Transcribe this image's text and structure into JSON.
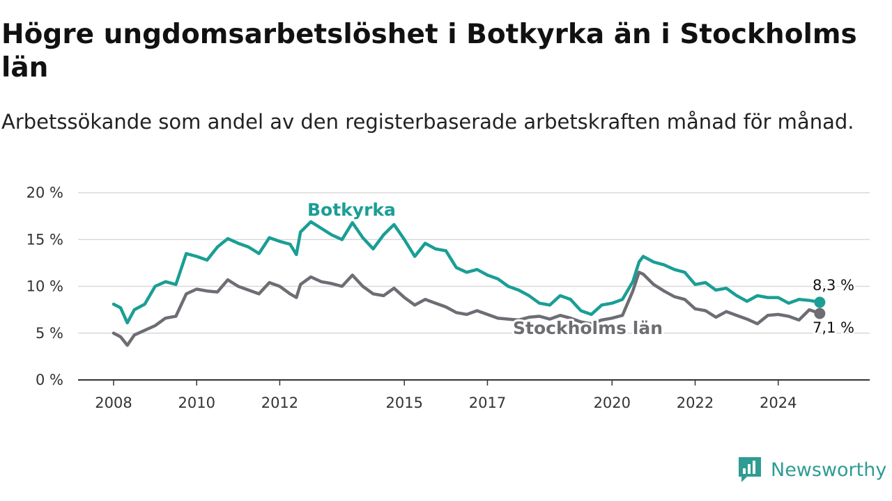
{
  "title": "Högre ungdomsarbetslöshet i Botkyrka än i Stockholms län",
  "subtitle": "Arbetssökande som andel av den registerbaserade arbetskraften månad för månad.",
  "brand": {
    "name": "Newsworthy",
    "icon": "newsworthy-logo-icon",
    "color": "#2e9c93"
  },
  "chart_data": {
    "type": "line",
    "title": "Högre ungdomsarbetslöshet i Botkyrka än i Stockholms län",
    "xlabel": "",
    "ylabel": "",
    "ylim": [
      0,
      20
    ],
    "xlim": [
      2008.0,
      2025.33
    ],
    "grid": true,
    "y_ticks": [
      0,
      5,
      10,
      15,
      20
    ],
    "y_tick_labels": [
      "0 %",
      "5 %",
      "10 %",
      "15 %",
      "20 %"
    ],
    "x_ticks": [
      2008,
      2010,
      2012,
      2015,
      2017,
      2020,
      2022,
      2024
    ],
    "x_tick_labels": [
      "2008",
      "2010",
      "2012",
      "2015",
      "2017",
      "2020",
      "2022",
      "2024"
    ],
    "series": [
      {
        "name": "Botkyrka",
        "color": "#1a9e95",
        "end_label": "8,3 %",
        "points": [
          [
            2008.0,
            8.1
          ],
          [
            2008.17,
            7.7
          ],
          [
            2008.33,
            6.1
          ],
          [
            2008.5,
            7.5
          ],
          [
            2008.75,
            8.1
          ],
          [
            2009.0,
            10.0
          ],
          [
            2009.25,
            10.5
          ],
          [
            2009.5,
            10.2
          ],
          [
            2009.75,
            13.5
          ],
          [
            2010.0,
            13.2
          ],
          [
            2010.25,
            12.8
          ],
          [
            2010.5,
            14.2
          ],
          [
            2010.75,
            15.1
          ],
          [
            2011.0,
            14.6
          ],
          [
            2011.25,
            14.2
          ],
          [
            2011.5,
            13.5
          ],
          [
            2011.75,
            15.2
          ],
          [
            2012.0,
            14.8
          ],
          [
            2012.25,
            14.5
          ],
          [
            2012.4,
            13.4
          ],
          [
            2012.5,
            15.8
          ],
          [
            2012.75,
            16.9
          ],
          [
            2013.0,
            16.2
          ],
          [
            2013.25,
            15.5
          ],
          [
            2013.5,
            15.0
          ],
          [
            2013.75,
            16.8
          ],
          [
            2014.0,
            15.2
          ],
          [
            2014.25,
            14.0
          ],
          [
            2014.5,
            15.5
          ],
          [
            2014.75,
            16.6
          ],
          [
            2015.0,
            15.0
          ],
          [
            2015.25,
            13.2
          ],
          [
            2015.5,
            14.6
          ],
          [
            2015.75,
            14.0
          ],
          [
            2016.0,
            13.8
          ],
          [
            2016.25,
            12.0
          ],
          [
            2016.5,
            11.5
          ],
          [
            2016.75,
            11.8
          ],
          [
            2017.0,
            11.2
          ],
          [
            2017.25,
            10.8
          ],
          [
            2017.5,
            10.0
          ],
          [
            2017.75,
            9.6
          ],
          [
            2018.0,
            9.0
          ],
          [
            2018.25,
            8.2
          ],
          [
            2018.5,
            8.0
          ],
          [
            2018.75,
            9.0
          ],
          [
            2019.0,
            8.6
          ],
          [
            2019.25,
            7.4
          ],
          [
            2019.5,
            7.0
          ],
          [
            2019.75,
            8.0
          ],
          [
            2020.0,
            8.2
          ],
          [
            2020.25,
            8.6
          ],
          [
            2020.5,
            10.5
          ],
          [
            2020.65,
            12.6
          ],
          [
            2020.75,
            13.2
          ],
          [
            2021.0,
            12.6
          ],
          [
            2021.25,
            12.3
          ],
          [
            2021.5,
            11.8
          ],
          [
            2021.75,
            11.5
          ],
          [
            2022.0,
            10.2
          ],
          [
            2022.25,
            10.4
          ],
          [
            2022.5,
            9.6
          ],
          [
            2022.75,
            9.8
          ],
          [
            2023.0,
            9.0
          ],
          [
            2023.25,
            8.4
          ],
          [
            2023.5,
            9.0
          ],
          [
            2023.75,
            8.8
          ],
          [
            2024.0,
            8.8
          ],
          [
            2024.25,
            8.2
          ],
          [
            2024.5,
            8.6
          ],
          [
            2024.75,
            8.5
          ],
          [
            2025.0,
            8.3
          ]
        ]
      },
      {
        "name": "Stockholms län",
        "color": "#6e6d73",
        "end_label": "7,1 %",
        "points": [
          [
            2008.0,
            5.0
          ],
          [
            2008.17,
            4.6
          ],
          [
            2008.33,
            3.7
          ],
          [
            2008.5,
            4.8
          ],
          [
            2008.75,
            5.3
          ],
          [
            2009.0,
            5.8
          ],
          [
            2009.25,
            6.6
          ],
          [
            2009.5,
            6.8
          ],
          [
            2009.75,
            9.2
          ],
          [
            2010.0,
            9.7
          ],
          [
            2010.25,
            9.5
          ],
          [
            2010.5,
            9.4
          ],
          [
            2010.75,
            10.7
          ],
          [
            2011.0,
            10.0
          ],
          [
            2011.25,
            9.6
          ],
          [
            2011.5,
            9.2
          ],
          [
            2011.75,
            10.4
          ],
          [
            2012.0,
            10.0
          ],
          [
            2012.25,
            9.2
          ],
          [
            2012.4,
            8.8
          ],
          [
            2012.5,
            10.2
          ],
          [
            2012.75,
            11.0
          ],
          [
            2013.0,
            10.5
          ],
          [
            2013.25,
            10.3
          ],
          [
            2013.5,
            10.0
          ],
          [
            2013.75,
            11.2
          ],
          [
            2014.0,
            10.0
          ],
          [
            2014.25,
            9.2
          ],
          [
            2014.5,
            9.0
          ],
          [
            2014.75,
            9.8
          ],
          [
            2015.0,
            8.8
          ],
          [
            2015.25,
            8.0
          ],
          [
            2015.5,
            8.6
          ],
          [
            2015.75,
            8.2
          ],
          [
            2016.0,
            7.8
          ],
          [
            2016.25,
            7.2
          ],
          [
            2016.5,
            7.0
          ],
          [
            2016.75,
            7.4
          ],
          [
            2017.0,
            7.0
          ],
          [
            2017.25,
            6.6
          ],
          [
            2017.5,
            6.5
          ],
          [
            2017.75,
            6.4
          ],
          [
            2018.0,
            6.7
          ],
          [
            2018.25,
            6.8
          ],
          [
            2018.5,
            6.5
          ],
          [
            2018.75,
            6.9
          ],
          [
            2019.0,
            6.6
          ],
          [
            2019.25,
            6.2
          ],
          [
            2019.5,
            6.0
          ],
          [
            2019.75,
            6.4
          ],
          [
            2020.0,
            6.6
          ],
          [
            2020.25,
            6.9
          ],
          [
            2020.5,
            9.5
          ],
          [
            2020.65,
            11.5
          ],
          [
            2020.75,
            11.3
          ],
          [
            2021.0,
            10.2
          ],
          [
            2021.25,
            9.5
          ],
          [
            2021.5,
            8.9
          ],
          [
            2021.75,
            8.6
          ],
          [
            2022.0,
            7.6
          ],
          [
            2022.25,
            7.4
          ],
          [
            2022.5,
            6.7
          ],
          [
            2022.75,
            7.3
          ],
          [
            2023.0,
            6.9
          ],
          [
            2023.25,
            6.5
          ],
          [
            2023.5,
            6.0
          ],
          [
            2023.75,
            6.9
          ],
          [
            2024.0,
            7.0
          ],
          [
            2024.25,
            6.8
          ],
          [
            2024.5,
            6.4
          ],
          [
            2024.75,
            7.5
          ],
          [
            2025.0,
            7.1
          ]
        ]
      }
    ]
  }
}
